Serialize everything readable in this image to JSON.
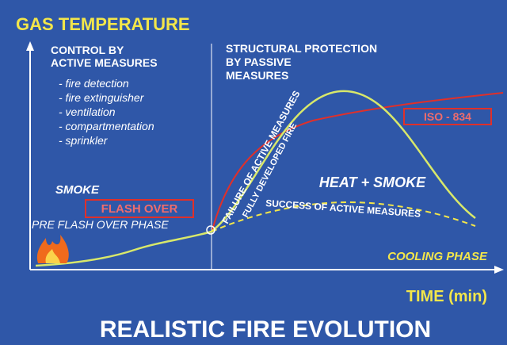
{
  "title": "GAS TEMPERATURE",
  "active": {
    "heading": [
      "CONTROL BY",
      "ACTIVE MEASURES"
    ],
    "items": [
      "- fire detection",
      "- fire extinguisher",
      "- ventilation",
      "- compartmentation",
      "- sprinkler"
    ]
  },
  "passive": {
    "heading": [
      "STRUCTURAL PROTECTION",
      "BY PASSIVE",
      "MEASURES"
    ]
  },
  "labels": {
    "smoke": "SMOKE",
    "flash_over": "FLASH OVER",
    "pre_flash_over": "PRE FLASH OVER PHASE",
    "heat_smoke": "HEAT + SMOKE",
    "cooling": "COOLING PHASE",
    "iso": "ISO - 834",
    "failure": "FAILURE OF ACTIVE MEASURES",
    "fully": "FULLY DEVELOPED FIRE",
    "success": "SUCCESS OF ACTIVE MEASURES"
  },
  "x_axis": "TIME (min)",
  "footer": "REALISTIC FIRE EVOLUTION"
}
